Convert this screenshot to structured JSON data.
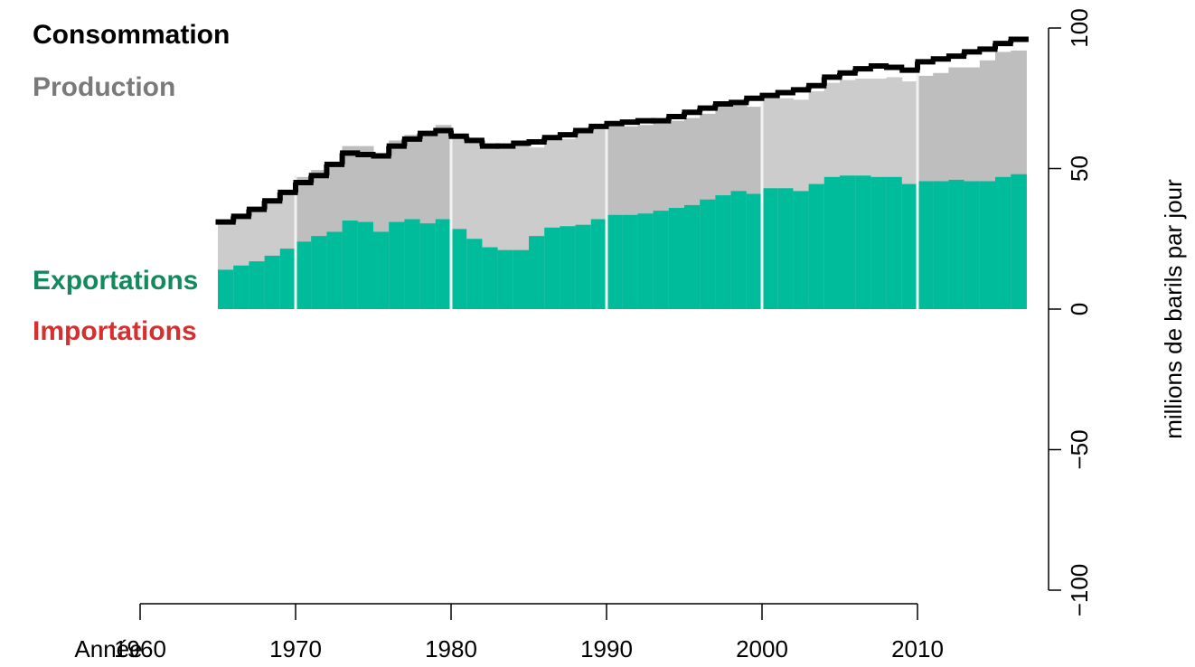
{
  "chart_data": {
    "type": "step-bar",
    "x_label": "Année",
    "y_label": "millions de barils par jour",
    "x": [
      1965,
      1966,
      1967,
      1968,
      1969,
      1970,
      1971,
      1972,
      1973,
      1974,
      1975,
      1976,
      1977,
      1978,
      1979,
      1980,
      1981,
      1982,
      1983,
      1984,
      1985,
      1986,
      1987,
      1988,
      1989,
      1990,
      1991,
      1992,
      1993,
      1994,
      1995,
      1996,
      1997,
      1998,
      1999,
      2000,
      2001,
      2002,
      2003,
      2004,
      2005,
      2006,
      2007,
      2008,
      2009,
      2010,
      2011,
      2012,
      2013,
      2014,
      2015,
      2016
    ],
    "series": [
      {
        "name": "Consommation",
        "color": "#000000",
        "legend_color": "#000000",
        "values": [
          31,
          33,
          35.5,
          38.5,
          41.5,
          45,
          47.5,
          51.5,
          55.5,
          55,
          54.5,
          58,
          60.5,
          62.5,
          63.5,
          61.5,
          60,
          58,
          58,
          59,
          59.5,
          61,
          62,
          63.5,
          65,
          66,
          66.5,
          67,
          67,
          68.5,
          70,
          71.5,
          73,
          73.5,
          75,
          76,
          77,
          78,
          79.5,
          82.5,
          84,
          85.5,
          86.5,
          86,
          85,
          88,
          89,
          90,
          91.5,
          92.5,
          94.5,
          96
        ]
      },
      {
        "name": "Production",
        "colors": [
          "#cccccc",
          "#bebebe"
        ],
        "legend_color": "#7a7a7a",
        "values": [
          30,
          33,
          35,
          38.5,
          41.5,
          47,
          49.5,
          52,
          58,
          58,
          55.5,
          60,
          62,
          62.5,
          65.5,
          62.5,
          59.5,
          57.5,
          57,
          58,
          57.5,
          60,
          60.5,
          63,
          64,
          65,
          65,
          65.5,
          66,
          67,
          68,
          69.5,
          72,
          73,
          72,
          75,
          75,
          74.5,
          77.5,
          80.5,
          81.5,
          82,
          82,
          82.5,
          81,
          83,
          84,
          86,
          86,
          88.5,
          91.5,
          92
        ]
      },
      {
        "name": "Exportations",
        "color": "#00bc9a",
        "legend_color": "#138a5e",
        "values": [
          14,
          15.5,
          17,
          19,
          21.5,
          24,
          26,
          27.5,
          31.5,
          31,
          27.5,
          31,
          32,
          30.5,
          32,
          28.5,
          25,
          22,
          21,
          21,
          26,
          29,
          29.5,
          30,
          32,
          33.5,
          33.5,
          34,
          35,
          36,
          37,
          39,
          40.5,
          42,
          41,
          43,
          43,
          42,
          44.5,
          47,
          47.5,
          47.5,
          47,
          47,
          44.5,
          45.5,
          45.5,
          46,
          45.5,
          45.5,
          47,
          48
        ]
      },
      {
        "name": "Importations",
        "color": "#d62f2f",
        "legend_color": "#d62f2f",
        "values": [
          0,
          0,
          0,
          0,
          0,
          0,
          0,
          0,
          0,
          0,
          0,
          0,
          0,
          0,
          0,
          0,
          0,
          0,
          0,
          0,
          0,
          0,
          0,
          0,
          0,
          0,
          0,
          0,
          0,
          0,
          0,
          0,
          0,
          0,
          0,
          0,
          0,
          0,
          0,
          0,
          0,
          0,
          0,
          0,
          0,
          0,
          0,
          0,
          0,
          0,
          0,
          0
        ]
      }
    ],
    "xlim": [
      1960,
      2010
    ],
    "xticks": [
      1960,
      1970,
      1980,
      1990,
      2000,
      2010
    ],
    "ylim": [
      -100,
      100
    ],
    "yticks": [
      {
        "value": -100,
        "label": "−100"
      },
      {
        "value": -50,
        "label": "−50"
      },
      0,
      50,
      100
    ]
  }
}
